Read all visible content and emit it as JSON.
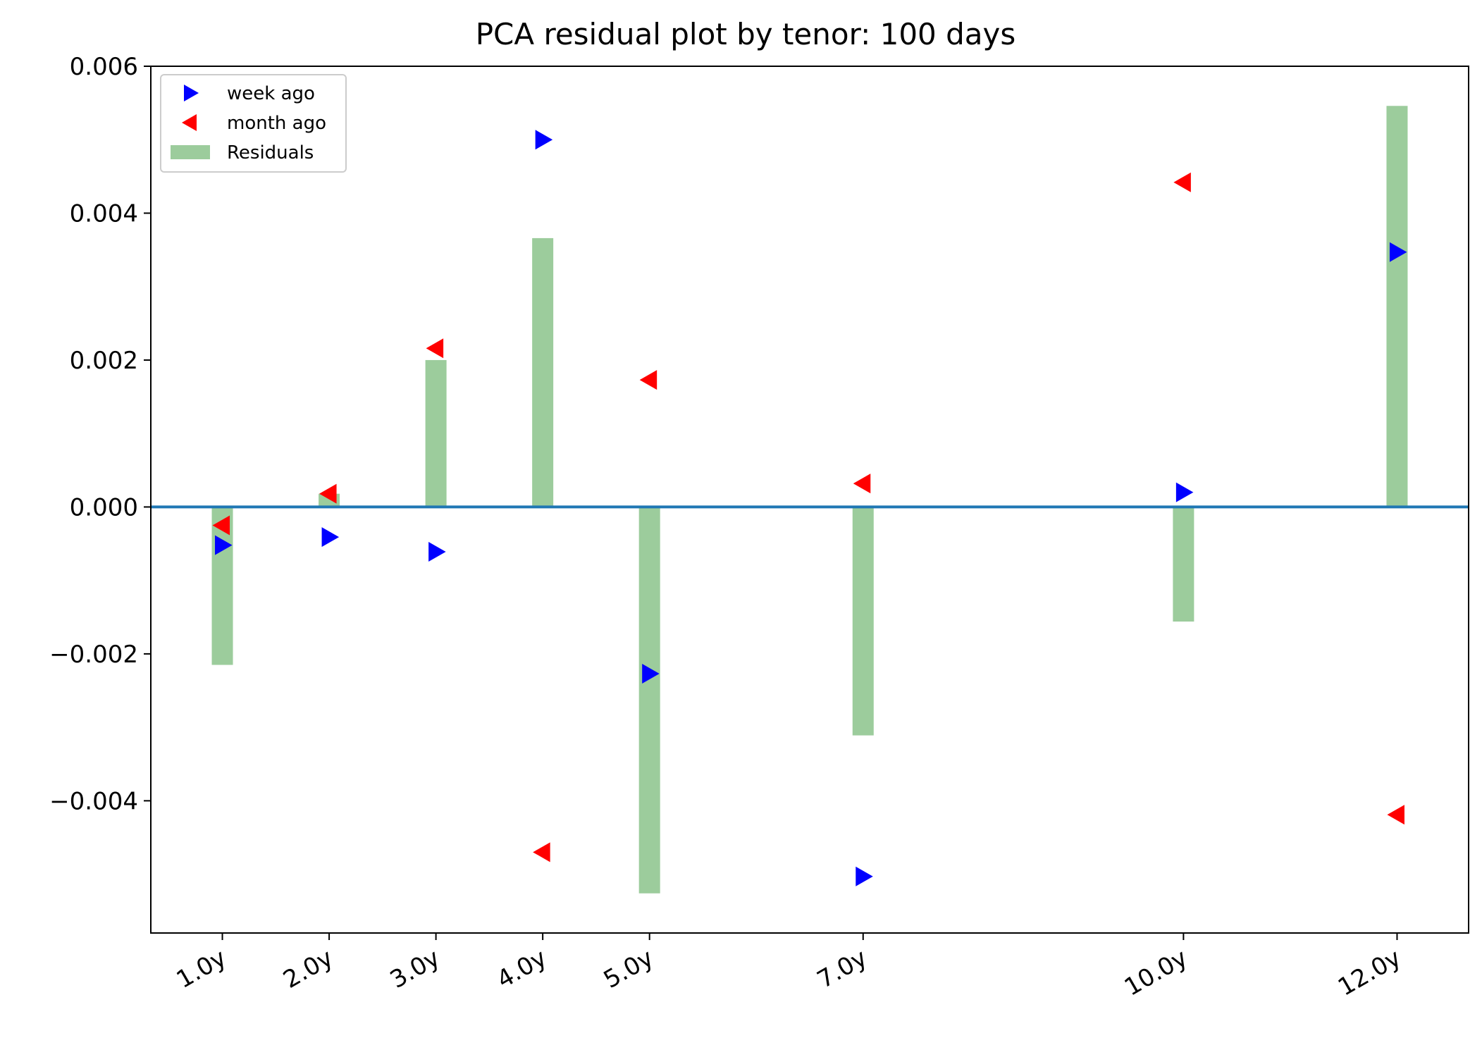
{
  "chart_data": {
    "type": "bar",
    "title": "PCA residual plot by tenor: 100 days",
    "xlabel": "",
    "ylabel": "",
    "x": [
      1.0,
      2.0,
      3.0,
      4.0,
      5.0,
      7.0,
      10.0,
      12.0
    ],
    "x_tick_labels": [
      "1.0y",
      "2.0y",
      "3.0y",
      "4.0y",
      "5.0y",
      "7.0y",
      "10.0y",
      "12.0y"
    ],
    "xlim": [
      0.33,
      12.67
    ],
    "ylim": [
      -0.0058,
      0.006
    ],
    "y_ticks": [
      0.006,
      0.004,
      0.002,
      0.0,
      -0.002,
      -0.004
    ],
    "y_tick_labels": [
      "0.006",
      "0.004",
      "0.002",
      "0.000",
      "−0.002",
      "−0.004"
    ],
    "grid": false,
    "legend_position": "top-left",
    "zero_line": {
      "y": 0.0,
      "color": "#1f77b4"
    },
    "series": [
      {
        "name": "Residuals",
        "kind": "bar",
        "color": "#9ccc9c",
        "values": [
          -0.00215,
          0.00018,
          0.002,
          0.00366,
          -0.00526,
          -0.00311,
          -0.00156,
          0.00546
        ]
      },
      {
        "name": "week ago",
        "kind": "marker",
        "marker": "triangle-right",
        "color": "#0000ff",
        "values": [
          -0.00052,
          -0.00041,
          -0.00061,
          0.005,
          -0.00227,
          -0.00503,
          0.0002,
          0.00347
        ]
      },
      {
        "name": "month ago",
        "kind": "marker",
        "marker": "triangle-left",
        "color": "#ff0000",
        "values": [
          -0.00025,
          0.00018,
          0.00216,
          -0.0047,
          0.00173,
          0.00032,
          0.00442,
          -0.00419
        ]
      }
    ],
    "legend_entries": [
      {
        "label": "week ago",
        "marker": "triangle-right",
        "color": "#0000ff"
      },
      {
        "label": "month ago",
        "marker": "triangle-left",
        "color": "#ff0000"
      },
      {
        "label": "Residuals",
        "marker": "patch",
        "color": "#9ccc9c"
      }
    ]
  }
}
